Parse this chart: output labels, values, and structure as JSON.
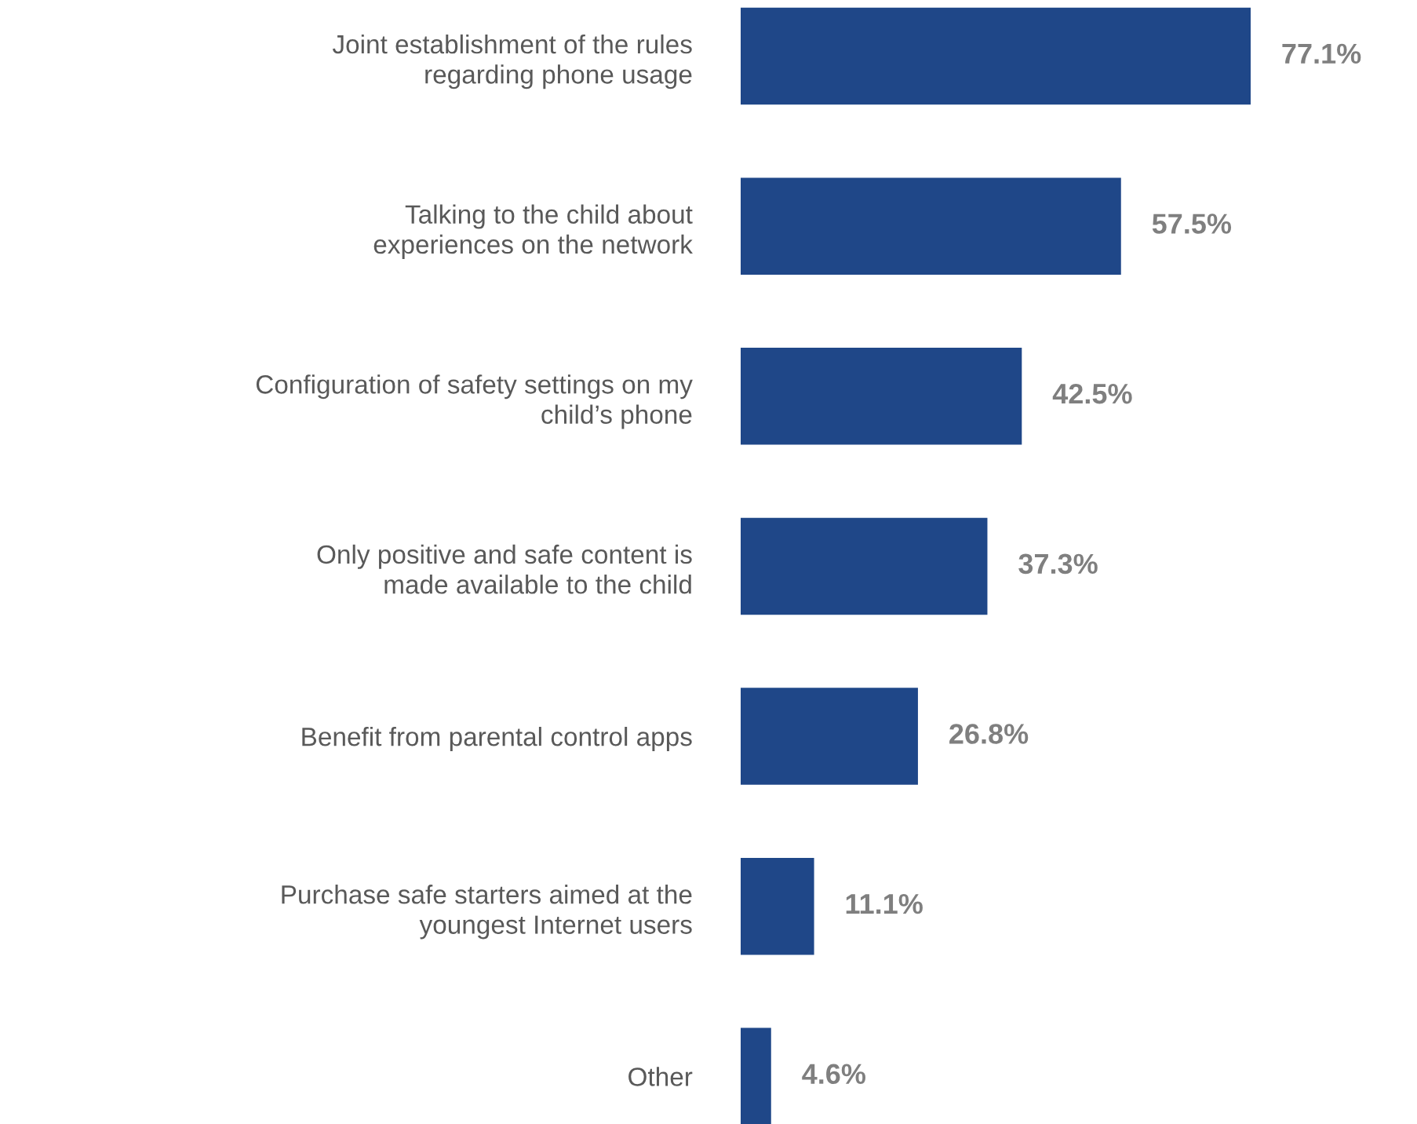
{
  "chart_data": {
    "type": "bar",
    "orientation": "horizontal",
    "data_labels": true,
    "grid": false,
    "legend": false,
    "categories": [
      "Joint establishment of the rules\nregarding phone usage",
      "Talking to the child about\nexperiences on the network",
      "Configuration of safety settings on my\nchild’s phone",
      "Only positive and safe content is\nmade available to the child",
      "Benefit from parental control apps",
      "Purchase safe starters aimed at the\nyoungest Internet users",
      "Other"
    ],
    "values": [
      77.1,
      57.5,
      42.5,
      37.3,
      26.8,
      11.1,
      4.6
    ],
    "value_labels": [
      "77.1%",
      "57.5%",
      "42.5%",
      "37.3%",
      "26.8%",
      "11.1%",
      "4.6%"
    ],
    "color": "#1f4788"
  }
}
